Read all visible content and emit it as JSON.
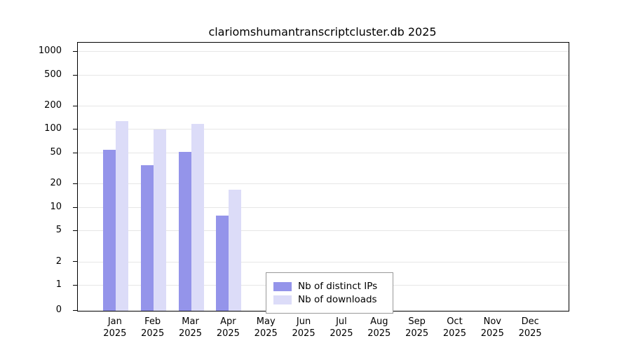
{
  "chart_data": {
    "type": "bar",
    "title": "clariomshumantranscriptcluster.db 2025",
    "categories": [
      "Jan",
      "Feb",
      "Mar",
      "Apr",
      "May",
      "Jun",
      "Jul",
      "Aug",
      "Sep",
      "Oct",
      "Nov",
      "Dec"
    ],
    "year": "2025",
    "series": [
      {
        "name": "Nb of distinct IPs",
        "color": "#9494ea",
        "values": [
          55,
          35,
          52,
          8,
          0,
          0,
          0,
          0,
          0,
          0,
          0,
          0
        ]
      },
      {
        "name": "Nb of downloads",
        "color": "#dcdcf8",
        "values": [
          130,
          100,
          120,
          17,
          0,
          0,
          0,
          0,
          0,
          0,
          0,
          0
        ]
      }
    ],
    "yticks": [
      0,
      1,
      2,
      5,
      10,
      20,
      50,
      100,
      200,
      500,
      1000
    ],
    "ylabel": "",
    "xlabel": "",
    "scale": "pseudo-log",
    "legend_position": "bottom-center-inside",
    "grid": "horizontal",
    "colors": {
      "grid": "#e6e6e6",
      "axis": "#000000",
      "background": "#ffffff"
    }
  }
}
